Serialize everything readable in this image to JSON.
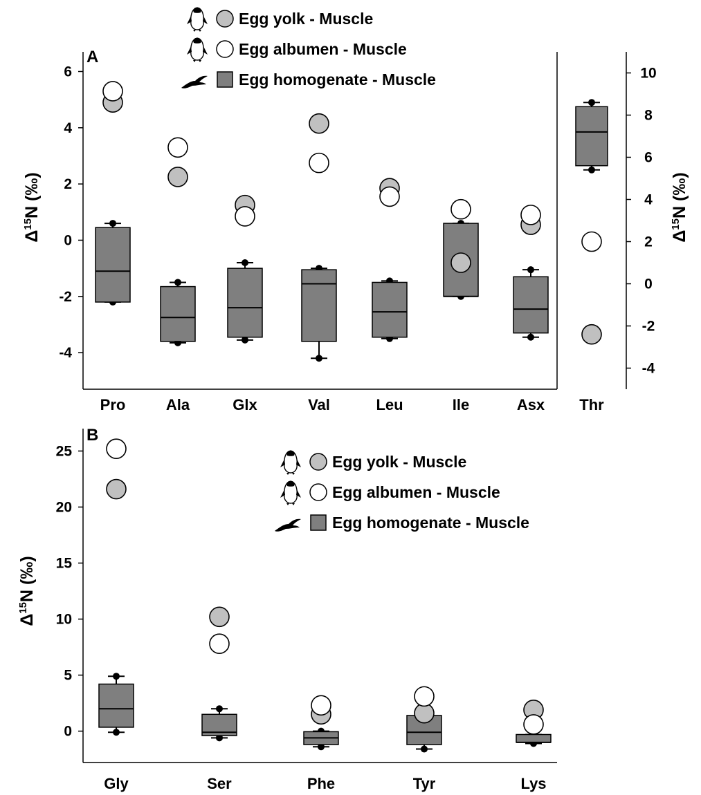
{
  "colors": {
    "yolk_fill": "#c0c0c0",
    "albumen_fill": "#ffffff",
    "box_fill": "#7f7f7f",
    "stroke": "#000000"
  },
  "legend": {
    "items": [
      {
        "label": "Egg yolk - Muscle",
        "icon": "penguin-icon",
        "marker": "circle-gray"
      },
      {
        "label": "Egg albumen - Muscle",
        "icon": "penguin-icon",
        "marker": "circle-white"
      },
      {
        "label": "Egg homogenate - Muscle",
        "icon": "bird-icon",
        "marker": "box-gray"
      }
    ]
  },
  "chart_data": [
    {
      "panel": "A",
      "type": "box",
      "ylabel_left": "Δ15N (‰)",
      "ylabel_right": "Δ15N (‰)",
      "ylim": [
        -5.3,
        6.7
      ],
      "yticks": [
        -4,
        -2,
        0,
        2,
        4,
        6
      ],
      "categories": [
        "Pro",
        "Ala",
        "Glx",
        "Val",
        "Leu",
        "Ile",
        "Asx"
      ],
      "series": [
        {
          "name": "Egg yolk - Muscle",
          "values": [
            4.9,
            2.25,
            1.25,
            4.15,
            1.85,
            -0.8,
            0.55
          ]
        },
        {
          "name": "Egg albumen - Muscle",
          "values": [
            5.3,
            3.3,
            0.85,
            2.75,
            1.55,
            1.1,
            0.9
          ]
        },
        {
          "name": "Egg homogenate - Muscle",
          "boxes": [
            {
              "whisker_low": -2.2,
              "q1": -2.2,
              "median": -1.1,
              "q3": 0.45,
              "whisker_high": 0.6
            },
            {
              "whisker_low": -3.65,
              "q1": -3.6,
              "median": -2.75,
              "q3": -1.65,
              "whisker_high": -1.5
            },
            {
              "whisker_low": -3.55,
              "q1": -3.45,
              "median": -2.4,
              "q3": -1.0,
              "whisker_high": -0.8
            },
            {
              "whisker_low": -4.2,
              "q1": -3.6,
              "median": -1.55,
              "q3": -1.05,
              "whisker_high": -1.0
            },
            {
              "whisker_low": -3.5,
              "q1": -3.45,
              "median": -2.55,
              "q3": -1.5,
              "whisker_high": -1.45
            },
            {
              "whisker_low": -2.0,
              "q1": -2.0,
              "median": -2.0,
              "q3": 0.6,
              "whisker_high": 0.6
            },
            {
              "whisker_low": -3.45,
              "q1": -3.3,
              "median": -2.45,
              "q3": -1.3,
              "whisker_high": -1.05
            }
          ]
        }
      ],
      "right_axis": {
        "ylim": [
          -5.0,
          11.0
        ],
        "yticks": [
          -4,
          -2,
          0,
          2,
          4,
          6,
          8,
          10
        ],
        "categories": [
          "Thr"
        ],
        "series": [
          {
            "name": "Egg yolk - Muscle",
            "values": [
              -2.4
            ]
          },
          {
            "name": "Egg albumen - Muscle",
            "values": [
              2.0
            ]
          },
          {
            "name": "Egg homogenate - Muscle",
            "boxes": [
              {
                "whisker_low": 5.4,
                "q1": 5.6,
                "median": 7.2,
                "q3": 8.4,
                "whisker_high": 8.6
              }
            ]
          }
        ]
      }
    },
    {
      "panel": "B",
      "type": "box",
      "ylabel_left": "Δ15N (‰)",
      "ylim": [
        -2.8,
        27.0
      ],
      "yticks": [
        0,
        5,
        10,
        15,
        20,
        25
      ],
      "categories": [
        "Gly",
        "Ser",
        "Phe",
        "Tyr",
        "Lys"
      ],
      "series": [
        {
          "name": "Egg yolk - Muscle",
          "values": [
            21.6,
            10.2,
            1.5,
            1.6,
            1.9
          ]
        },
        {
          "name": "Egg albumen - Muscle",
          "values": [
            25.2,
            7.8,
            2.3,
            3.1,
            0.6
          ]
        },
        {
          "name": "Egg homogenate - Muscle",
          "boxes": [
            {
              "whisker_low": -0.1,
              "q1": 0.35,
              "median": 2.0,
              "q3": 4.2,
              "whisker_high": 4.9
            },
            {
              "whisker_low": -0.6,
              "q1": -0.4,
              "median": -0.1,
              "q3": 1.5,
              "whisker_high": 2.0
            },
            {
              "whisker_low": -1.4,
              "q1": -1.2,
              "median": -0.6,
              "q3": -0.05,
              "whisker_high": 0.0
            },
            {
              "whisker_low": -1.6,
              "q1": -1.2,
              "median": -0.1,
              "q3": 1.4,
              "whisker_high": 1.4
            },
            {
              "whisker_low": -1.1,
              "q1": -1.0,
              "median": -1.0,
              "q3": -0.3,
              "whisker_high": -0.3
            }
          ]
        }
      ]
    }
  ]
}
